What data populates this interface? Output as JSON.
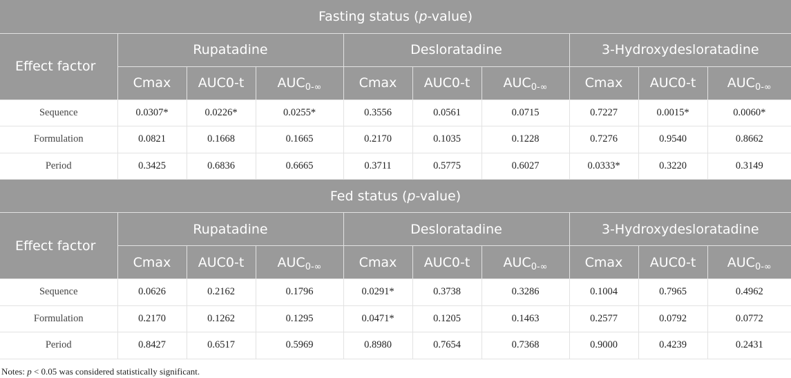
{
  "sections": [
    {
      "title_pre": "Fasting status (",
      "title_italic": "p",
      "title_post": "-value)",
      "effect_label": "Effect factor",
      "groups": [
        "Rupatadine",
        "Desloratadine",
        "3-Hydroxydesloratadine"
      ],
      "metrics": [
        "Cmax",
        "AUC0-t",
        "AUC"
      ],
      "auc_inf_sub": "0-∞",
      "rows": [
        {
          "label": "Sequence",
          "values": [
            "0.0307*",
            "0.0226*",
            "0.0255*",
            "0.3556",
            "0.0561",
            "0.0715",
            "0.7227",
            "0.0015*",
            "0.0060*"
          ]
        },
        {
          "label": "Formulation",
          "values": [
            "0.0821",
            "0.1668",
            "0.1665",
            "0.2170",
            "0.1035",
            "0.1228",
            "0.7276",
            "0.9540",
            "0.8662"
          ]
        },
        {
          "label": "Period",
          "values": [
            "0.3425",
            "0.6836",
            "0.6665",
            "0.3711",
            "0.5775",
            "0.6027",
            "0.0333*",
            "0.3220",
            "0.3149"
          ]
        }
      ]
    },
    {
      "title_pre": "Fed status (",
      "title_italic": "p",
      "title_post": "-value)",
      "effect_label": "Effect factor",
      "groups": [
        "Rupatadine",
        "Desloratadine",
        "3-Hydroxydesloratadine"
      ],
      "metrics": [
        "Cmax",
        "AUC0-t",
        "AUC"
      ],
      "auc_inf_sub": "0-∞",
      "rows": [
        {
          "label": "Sequence",
          "values": [
            "0.0626",
            "0.2162",
            "0.1796",
            "0.0291*",
            "0.3738",
            "0.3286",
            "0.1004",
            "0.7965",
            "0.4962"
          ]
        },
        {
          "label": "Formulation",
          "values": [
            "0.2170",
            "0.1262",
            "0.1295",
            "0.0471*",
            "0.1205",
            "0.1463",
            "0.2577",
            "0.0792",
            "0.0772"
          ]
        },
        {
          "label": "Period",
          "values": [
            "0.8427",
            "0.6517",
            "0.5969",
            "0.8980",
            "0.7654",
            "0.7368",
            "0.9000",
            "0.4239",
            "0.2431"
          ]
        }
      ]
    }
  ],
  "note": {
    "pre": "Notes: ",
    "italic": "p",
    "post": " < 0.05 was considered statistically significant."
  }
}
